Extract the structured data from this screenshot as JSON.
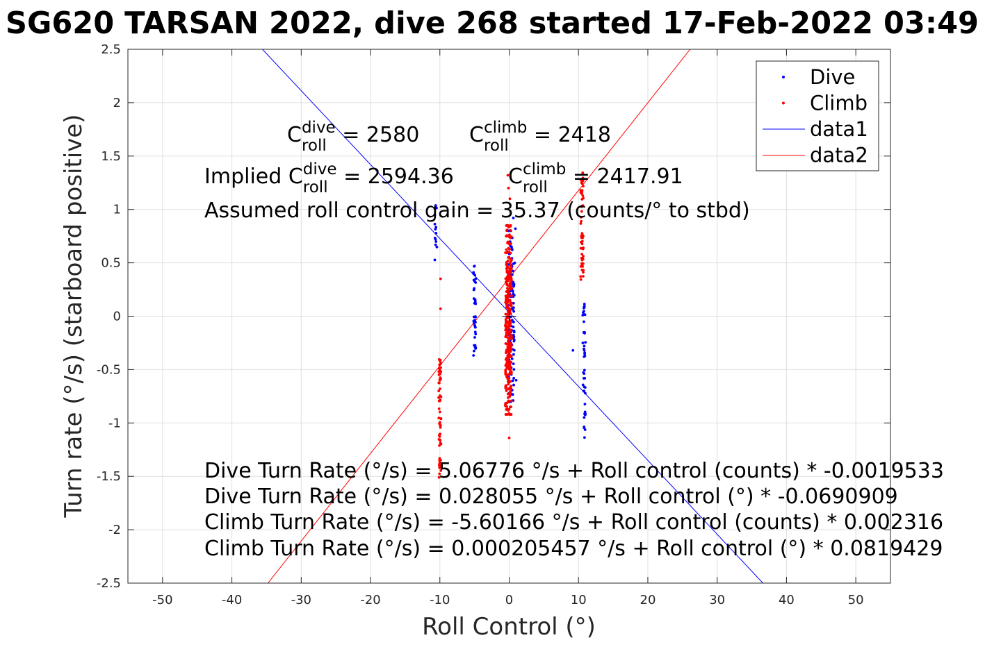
{
  "chart_data": {
    "type": "scatter",
    "title": "SG620 TARSAN 2022, dive 268 started 17-Feb-2022 03:49",
    "xlabel": "Roll Control (°)",
    "ylabel": "Turn rate (°/s) (starboard positive)",
    "xlim": [
      -55,
      55
    ],
    "ylim": [
      -2.5,
      2.5
    ],
    "xticks": [
      -50,
      -40,
      -30,
      -20,
      -10,
      0,
      10,
      20,
      30,
      40,
      50
    ],
    "yticks": [
      -2.5,
      -2,
      -1.5,
      -1,
      -0.5,
      0,
      0.5,
      1,
      1.5,
      2,
      2.5
    ],
    "grid": true,
    "legend": {
      "placement": "top-right",
      "entries": [
        "Dive",
        "Climb",
        "data1",
        "data2"
      ]
    },
    "series": [
      {
        "name": "Dive",
        "kind": "points",
        "color": "#0000ff",
        "clusters": [
          {
            "x": -10.6,
            "ymin": 0.5,
            "ymax": 1.06,
            "n": 14,
            "spread": 0.35
          },
          {
            "x": -5.0,
            "ymin": -0.37,
            "ymax": 0.48,
            "n": 38,
            "spread": 0.35
          },
          {
            "x": 0.3,
            "ymin": -0.8,
            "ymax": 0.8,
            "n": 120,
            "spread": 0.9
          },
          {
            "x": 10.8,
            "ymin": -1.2,
            "ymax": 0.12,
            "n": 45,
            "spread": 0.4
          }
        ],
        "points": [
          [
            9.2,
            -0.32
          ],
          [
            0.9,
            0.82
          ],
          [
            0.6,
            0.92
          ],
          [
            1.0,
            -0.6
          ],
          [
            0.8,
            0.5
          ],
          [
            0.7,
            0.3
          ]
        ]
      },
      {
        "name": "Climb",
        "kind": "points",
        "color": "#ff0000",
        "clusters": [
          {
            "x": -10.0,
            "ymin": -1.52,
            "ymax": -0.4,
            "n": 65,
            "spread": 0.35
          },
          {
            "x": -0.1,
            "ymin": -0.92,
            "ymax": 0.85,
            "n": 340,
            "spread": 0.9
          },
          {
            "x": 10.5,
            "ymin": 0.25,
            "ymax": 1.37,
            "n": 60,
            "spread": 0.4
          }
        ],
        "points": [
          [
            -9.9,
            0.35
          ],
          [
            -9.9,
            0.07
          ],
          [
            -0.2,
            1.32
          ],
          [
            0.0,
            -1.14
          ],
          [
            -0.1,
            1.2
          ],
          [
            0.1,
            1.1
          ]
        ]
      },
      {
        "name": "data1",
        "kind": "line",
        "color": "#0000ff",
        "x": [
          -35.6,
          36.6
        ],
        "y": [
          2.5,
          -2.5
        ]
      },
      {
        "name": "data2",
        "kind": "line",
        "color": "#ff0000",
        "x": [
          -34.8,
          26.1
        ],
        "y": [
          -2.5,
          2.5
        ]
      }
    ],
    "annotations": [
      {
        "prefix": "",
        "sym": "C",
        "sup": "dive",
        "sub": "roll",
        "suffix": " = 2580"
      },
      {
        "prefix": "",
        "sym": "C",
        "sup": "climb",
        "sub": "roll",
        "suffix": " = 2418"
      },
      {
        "prefix": "Implied ",
        "sym": "C",
        "sup": "dive",
        "sub": "roll",
        "suffix": " = 2594.36"
      },
      {
        "prefix": "",
        "sym": "C",
        "sup": "climb",
        "sub": "roll",
        "suffix": " = 2417.91"
      },
      {
        "prefix": "Assumed roll control gain = 35.37 (counts/° to stbd)"
      },
      {
        "prefix": "Dive Turn Rate (°/s) = 5.06776 °/s + Roll control (counts) * -0.0019533"
      },
      {
        "prefix": "Dive Turn Rate (°/s) = 0.028055 °/s + Roll control (°) * -0.0690909"
      },
      {
        "prefix": "Climb Turn Rate (°/s) = -5.60166 °/s + Roll control (counts) * 0.002316"
      },
      {
        "prefix": "Climb Turn Rate (°/s) = 0.000205457 °/s + Roll control (°) * 0.0819429"
      }
    ]
  }
}
